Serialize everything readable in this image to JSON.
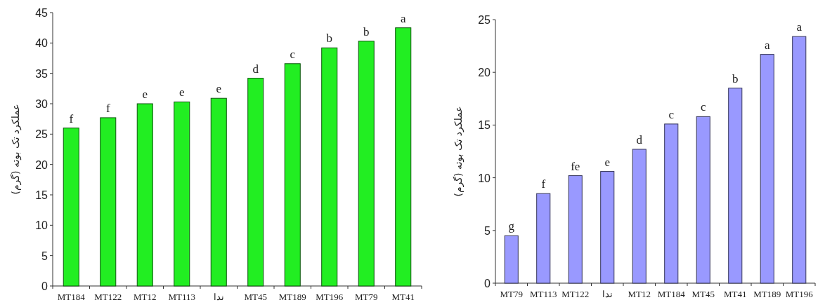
{
  "chart_data": [
    {
      "type": "bar",
      "ylabel": "عملکرد تک بوته (گرم)",
      "categories": [
        "MT184",
        "MT122",
        "MT12",
        "MT113",
        "ندا",
        "MT45",
        "MT189",
        "MT196",
        "MT79",
        "MT41"
      ],
      "values": [
        26,
        27.7,
        30,
        30.3,
        30.9,
        34.2,
        36.6,
        39.2,
        40.3,
        42.5
      ],
      "color": "#22ee22",
      "value_labels": [
        "f",
        "f",
        "e",
        "e",
        "e",
        "d",
        "c",
        "b",
        "b",
        "a"
      ],
      "ylim": [
        0,
        45
      ],
      "yticks": [
        0,
        5,
        10,
        15,
        20,
        25,
        30,
        35,
        40,
        45
      ]
    },
    {
      "type": "bar",
      "ylabel": "عملکرد تک بوته (گرم)",
      "categories": [
        "MT79",
        "MT113",
        "MT122",
        "ندا",
        "MT12",
        "MT184",
        "MT45",
        "MT41",
        "MT189",
        "MT196"
      ],
      "values": [
        4.5,
        8.5,
        10.2,
        10.6,
        12.7,
        15.1,
        15.8,
        18.5,
        21.7,
        23.4
      ],
      "color": "#9999ff",
      "value_labels": [
        "g",
        "f",
        "fe",
        "e",
        "d",
        "c",
        "c",
        "b",
        "a",
        "a"
      ],
      "ylim": [
        0,
        25
      ],
      "yticks": [
        0,
        5,
        10,
        15,
        20,
        25
      ]
    }
  ]
}
